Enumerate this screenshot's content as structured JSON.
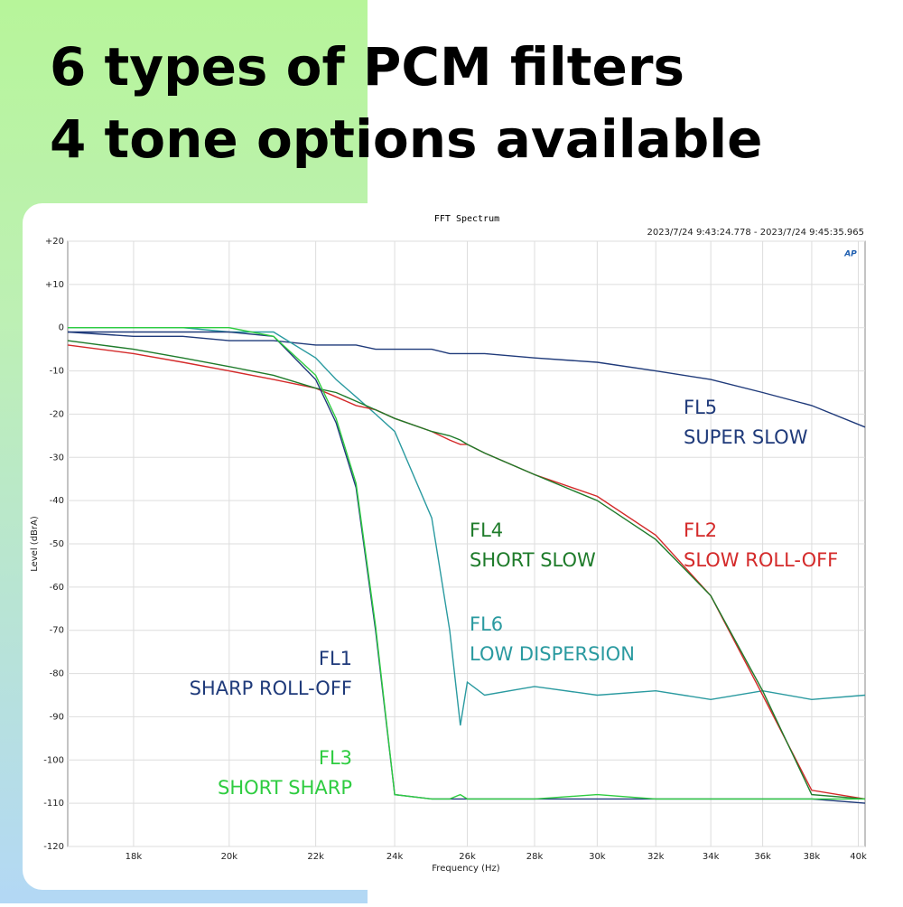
{
  "headline": [
    "6 types of PCM filters",
    "4 tone options available"
  ],
  "chart_data": {
    "type": "line",
    "title": "FFT Spectrum",
    "date_range": "2023/7/24 9:43:24.778 -  2023/7/24 9:45:35.965",
    "logo": "AP",
    "x_label": "Frequency (Hz)",
    "y_label": "Level (dBrA)",
    "xscale": "log",
    "grid": true,
    "xlim": [
      16740,
      40300
    ],
    "ylim": [
      -120,
      20
    ],
    "xticks": [
      {
        "value": 18000,
        "label": "18k"
      },
      {
        "value": 20000,
        "label": "20k"
      },
      {
        "value": 22000,
        "label": "22k"
      },
      {
        "value": 24000,
        "label": "24k"
      },
      {
        "value": 26000,
        "label": "26k"
      },
      {
        "value": 28000,
        "label": "28k"
      },
      {
        "value": 30000,
        "label": "30k"
      },
      {
        "value": 32000,
        "label": "32k"
      },
      {
        "value": 34000,
        "label": "34k"
      },
      {
        "value": 36000,
        "label": "36k"
      },
      {
        "value": 38000,
        "label": "38k"
      },
      {
        "value": 40000,
        "label": "40k"
      }
    ],
    "yticks": [
      {
        "value": 20,
        "label": "+20"
      },
      {
        "value": 10,
        "label": "+10"
      },
      0,
      -10,
      -20,
      -30,
      -40,
      -50,
      -60,
      -70,
      -80,
      -90,
      -100,
      -110,
      -120
    ],
    "x": [
      16740,
      18000,
      19000,
      20000,
      21000,
      22000,
      22500,
      23000,
      23500,
      24000,
      25000,
      25500,
      25800,
      26000,
      26500,
      28000,
      30000,
      32000,
      34000,
      36000,
      38000,
      40300
    ],
    "series": [
      {
        "name": "FL5",
        "label": "SUPER SLOW",
        "color": "#1f3a7a",
        "values": [
          -1,
          -2,
          -2,
          -3,
          -3,
          -4,
          -4,
          -4,
          -5,
          -5,
          -5,
          -6,
          -6,
          -6,
          -6,
          -7,
          -8,
          -10,
          -12,
          -15,
          -18,
          -23
        ]
      },
      {
        "name": "FL6",
        "label": "LOW DISPERSION",
        "color": "#2a9aa0",
        "values": [
          0,
          0,
          0,
          -1,
          -1,
          -7,
          -12,
          -16,
          -20,
          -24,
          -44,
          -70,
          -92,
          -82,
          -85,
          -83,
          -85,
          -84,
          -86,
          -84,
          -86,
          -85
        ]
      },
      {
        "name": "FL2",
        "label": "SLOW ROLL-OFF",
        "color": "#d42a2a",
        "values": [
          -4,
          -6,
          -8,
          -10,
          -12,
          -14,
          -16,
          -18,
          -19,
          -21,
          -24,
          -26,
          -27,
          -27,
          -29,
          -34,
          -39,
          -48,
          -62,
          -85,
          -107,
          -109
        ]
      },
      {
        "name": "FL4",
        "label": "SHORT SLOW",
        "color": "#1e7b2a",
        "values": [
          -3,
          -5,
          -7,
          -9,
          -11,
          -14,
          -15,
          -17,
          -19,
          -21,
          -24,
          -25,
          -26,
          -27,
          -29,
          -34,
          -40,
          -49,
          -62,
          -84,
          -108,
          -109
        ]
      },
      {
        "name": "FL1",
        "label": "SHARP ROLL-OFF",
        "color": "#1f3a7a",
        "values": [
          -1,
          -1,
          -1,
          -1,
          -2,
          -12,
          -22,
          -37,
          -70,
          -108,
          -109,
          -109,
          -109,
          -109,
          -109,
          -109,
          -109,
          -109,
          -109,
          -109,
          -109,
          -110
        ]
      },
      {
        "name": "FL3",
        "label": "SHORT SHARP",
        "color": "#2ecc40",
        "values": [
          0,
          0,
          0,
          0,
          -2,
          -11,
          -21,
          -36,
          -69,
          -108,
          -109,
          -109,
          -108,
          -109,
          -109,
          -109,
          -108,
          -109,
          -109,
          -109,
          -109,
          -109
        ]
      }
    ]
  }
}
